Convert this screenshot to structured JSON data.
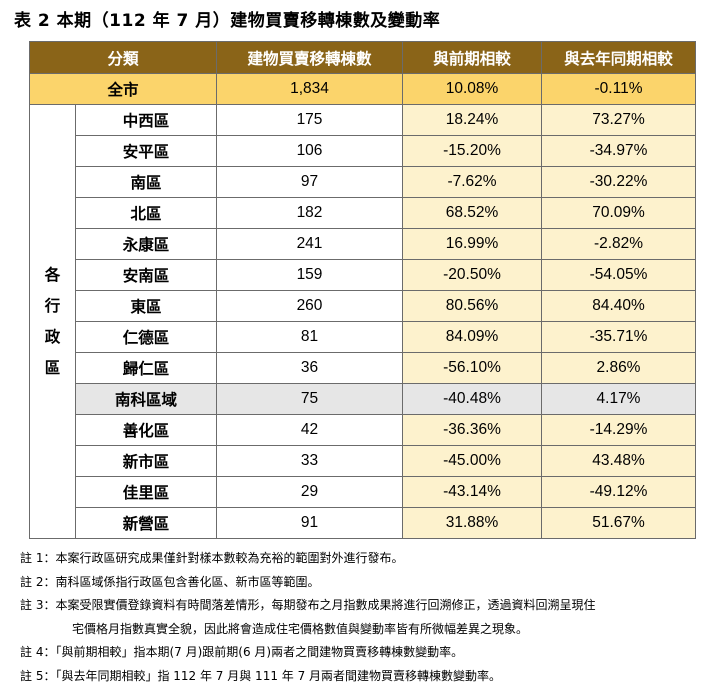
{
  "title": "表 2 本期（112 年 7 月）建物買賣移轉棟數及變動率",
  "headers": [
    "分類",
    "建物買賣移轉棟數",
    "與前期相較",
    "與去年同期相較"
  ],
  "total": {
    "name": "全市",
    "count": "1,834",
    "prev": "10.08%",
    "yoy": "-0.11%"
  },
  "group_label": "各行政區",
  "group_chars": [
    "各",
    "行",
    "政",
    "區"
  ],
  "rows": [
    {
      "name": "中西區",
      "count": "175",
      "prev": "18.24%",
      "yoy": "73.27%"
    },
    {
      "name": "安平區",
      "count": "106",
      "prev": "-15.20%",
      "yoy": "-34.97%"
    },
    {
      "name": "南區",
      "count": "97",
      "prev": "-7.62%",
      "yoy": "-30.22%"
    },
    {
      "name": "北區",
      "count": "182",
      "prev": "68.52%",
      "yoy": "70.09%"
    },
    {
      "name": "永康區",
      "count": "241",
      "prev": "16.99%",
      "yoy": "-2.82%"
    },
    {
      "name": "安南區",
      "count": "159",
      "prev": "-20.50%",
      "yoy": "-54.05%"
    },
    {
      "name": "東區",
      "count": "260",
      "prev": "80.56%",
      "yoy": "84.40%"
    },
    {
      "name": "仁德區",
      "count": "81",
      "prev": "84.09%",
      "yoy": "-35.71%"
    },
    {
      "name": "歸仁區",
      "count": "36",
      "prev": "-56.10%",
      "yoy": "2.86%"
    },
    {
      "name": "南科區域",
      "count": "75",
      "prev": "-40.48%",
      "yoy": "4.17%"
    },
    {
      "name": "善化區",
      "count": "42",
      "prev": "-36.36%",
      "yoy": "-14.29%"
    },
    {
      "name": "新市區",
      "count": "33",
      "prev": "-45.00%",
      "yoy": "43.48%"
    },
    {
      "name": "佳里區",
      "count": "29",
      "prev": "-43.14%",
      "yoy": "-49.12%"
    },
    {
      "name": "新營區",
      "count": "91",
      "prev": "31.88%",
      "yoy": "51.67%"
    }
  ],
  "notes": [
    "註 1：本案行政區研究成果僅針對樣本數較為充裕的範圍對外進行發布。",
    "註 2：南科區域係指行政區包含善化區、新市區等範圍。",
    "註 3：本案受限實價登錄資料有時間落差情形，每期發布之月指數成果將進行回溯修正，透過資料回溯呈現住",
    "宅價格月指數真實全貌，因此將會造成住宅價格數值與變動率皆有所微幅差異之現象。",
    "註 4：「與前期相較」指本期(7 月)跟前期(6 月)兩者之間建物買賣移轉棟數變動率。",
    "註 5：「與去年同期相較」指 112 年 7 月與 111 年 7 月兩者間建物買賣移轉棟數變動率。"
  ]
}
